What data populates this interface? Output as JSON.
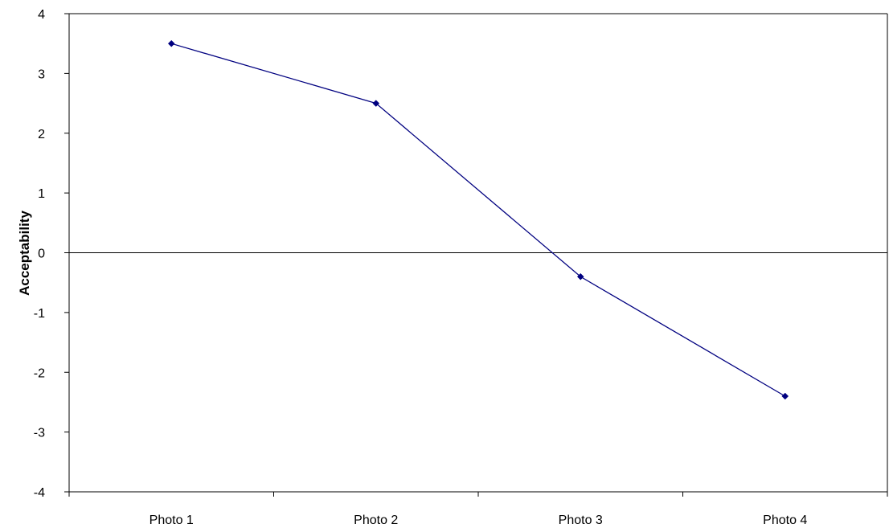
{
  "chart_data": {
    "type": "line",
    "title": "",
    "xlabel": "",
    "ylabel": "Acceptability",
    "categories": [
      "Photo 1",
      "Photo 2",
      "Photo 3",
      "Photo 4"
    ],
    "series": [
      {
        "values": [
          3.5,
          2.5,
          -0.4,
          -2.4
        ],
        "color": "#000080",
        "marker": "diamond"
      }
    ],
    "ylim": [
      -4,
      4
    ],
    "yticks": [
      4,
      3,
      2,
      1,
      0,
      -1,
      -2,
      -3,
      -4
    ],
    "grid": false,
    "zero_line": true,
    "legend": "none"
  }
}
